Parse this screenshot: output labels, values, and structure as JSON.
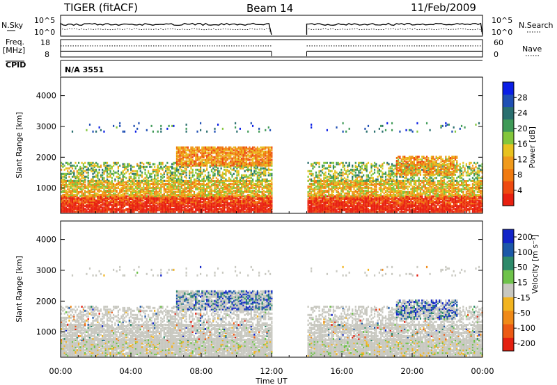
{
  "header": {
    "station": "TIGER (fitACF)",
    "beam": "Beam 14",
    "date": "11/Feb/2009"
  },
  "noise_panel": {
    "left_label": "N.Sky",
    "left_ticks": [
      "10^5",
      "10^0"
    ],
    "right_ticks": [
      "10^5",
      "10^0"
    ],
    "right_label": "N.Search"
  },
  "freq_panel": {
    "left_label_1": "Freq.",
    "left_label_2": "[MHz]",
    "left_ticks": [
      "18",
      "8"
    ],
    "right_ticks": [
      "60",
      "0"
    ],
    "right_label": "Nave"
  },
  "cpid_panel": {
    "label": "CPID",
    "value": "N/A 3551"
  },
  "chart_data": [
    {
      "type": "heatmap",
      "name": "power",
      "ylabel": "Slant Range [km]",
      "xlabel": "Time UT",
      "x_ticks": [
        "00:00",
        "04:00",
        "08:00",
        "12:00",
        "16:00",
        "20:00",
        "00:00"
      ],
      "x_range_hours": [
        0,
        24
      ],
      "y_ticks": [
        1000,
        2000,
        3000,
        4000
      ],
      "ylim": [
        180,
        4600
      ],
      "data_gap_hours": [
        12,
        14
      ],
      "colorbar": {
        "label": "Power [dB]",
        "ticks": [
          "4",
          "8",
          "12",
          "16",
          "20",
          "24",
          "28"
        ],
        "colors": [
          "#0a1ee6",
          "#1f4fb4",
          "#2a6f6f",
          "#3f9a57",
          "#83c63c",
          "#e8c21f",
          "#f09a1c",
          "#f07a10",
          "#ee4a10",
          "#e82010"
        ]
      }
    },
    {
      "type": "heatmap",
      "name": "velocity",
      "ylabel": "Slant Range [km]",
      "xlabel": "Time UT",
      "x_ticks": [
        "00:00",
        "04:00",
        "08:00",
        "12:00",
        "16:00",
        "20:00",
        "00:00"
      ],
      "x_range_hours": [
        0,
        24
      ],
      "y_ticks": [
        1000,
        2000,
        3000,
        4000
      ],
      "ylim": [
        180,
        4600
      ],
      "data_gap_hours": [
        12,
        14
      ],
      "colorbar": {
        "label": "Velocity [m s⁻¹]",
        "ticks": [
          "200",
          "100",
          "50",
          "15",
          "-15",
          "-50",
          "-100",
          "-200"
        ],
        "colors": [
          "#1224c8",
          "#1c58a8",
          "#2e8a6a",
          "#6ec24a",
          "#c8c8c0",
          "#f2b420",
          "#f08a18",
          "#ec5a14",
          "#e42010"
        ]
      }
    }
  ],
  "x_axis_title": "Time UT"
}
